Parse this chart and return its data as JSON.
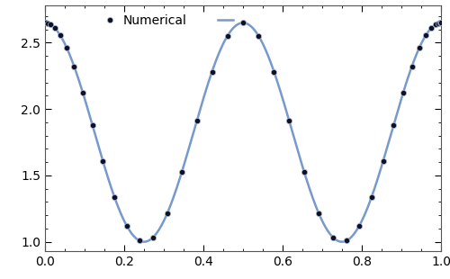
{
  "title": "",
  "xlabel": "",
  "ylabel": "",
  "xlim": [
    0.0,
    1.0
  ],
  "ylim": [
    0.93,
    2.78
  ],
  "xticks": [
    0.0,
    0.2,
    0.4,
    0.6,
    0.8,
    1.0
  ],
  "yticks": [
    1.0,
    1.5,
    2.0,
    2.5
  ],
  "N": 40,
  "T": 0.5,
  "line_color": "#7799cc",
  "dot_color": "#111122",
  "dot_size": 4.5,
  "dot_edge_color": "#aabbdd",
  "dot_edge_width": 0.5,
  "line_width": 1.8,
  "legend_numerical_label": "Numerical",
  "legend_exact_label": "",
  "background_color": "#ffffff",
  "figsize": [
    5.0,
    3.1
  ],
  "dpi": 100
}
